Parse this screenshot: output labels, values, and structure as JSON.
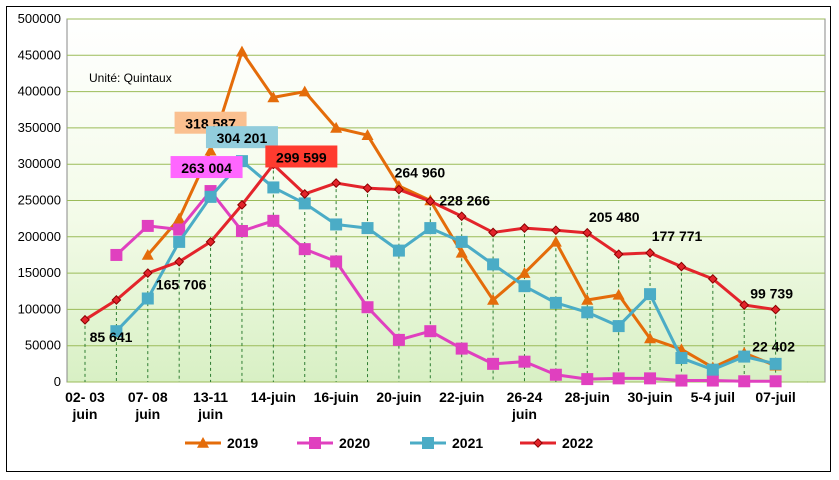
{
  "chart_data": {
    "type": "line",
    "unit_note": "Unité: Quintaux",
    "ylim": [
      0,
      500000
    ],
    "yticks": [
      "0",
      "50000",
      "100000",
      "150000",
      "200000",
      "250000",
      "300000",
      "350000",
      "400000",
      "450000",
      "500000"
    ],
    "xtick_labels": [
      [
        "02- 03",
        "juin"
      ],
      [
        "07- 08",
        "juin"
      ],
      [
        "13-11",
        "juin"
      ],
      [
        "14-juin"
      ],
      [
        "16-juin"
      ],
      [
        "20-juin"
      ],
      [
        "22-juin"
      ],
      [
        "26-24",
        "juin"
      ],
      [
        "28-juin"
      ],
      [
        "30-juin"
      ],
      [
        "5-4 juil"
      ],
      [
        "07-juil"
      ]
    ],
    "x_count": 24,
    "grid": true,
    "legend_position": "bottom",
    "series": [
      {
        "name": "2019",
        "color": "#E46C0A",
        "marker": "triangle",
        "start": 2,
        "values": [
          175000,
          225000,
          318587,
          455000,
          392000,
          400000,
          350000,
          340000,
          270000,
          250000,
          178000,
          113000,
          150000,
          193000,
          113000,
          120000,
          60000,
          45000,
          20000,
          40000,
          22402
        ]
      },
      {
        "name": "2020",
        "color": "#E040BF",
        "marker": "square",
        "start": 1,
        "values": [
          175000,
          215000,
          210000,
          263004,
          208000,
          222000,
          183000,
          166000,
          103000,
          58000,
          70000,
          46000,
          25000,
          28000,
          10000,
          4000,
          5000,
          5000,
          2000,
          2000,
          1000,
          1000
        ]
      },
      {
        "name": "2021",
        "color": "#4BACC6",
        "marker": "square",
        "start": 1,
        "values": [
          70000,
          115000,
          193000,
          255000,
          304201,
          268000,
          246000,
          217000,
          212000,
          181000,
          212000,
          193000,
          162000,
          132000,
          109000,
          96000,
          77000,
          121000,
          33000,
          17000,
          35000,
          25000
        ]
      },
      {
        "name": "2022",
        "color": "#E3242B",
        "marker": "diamond",
        "start": 0,
        "values": [
          85641,
          113000,
          150000,
          165706,
          193000,
          244000,
          299599,
          259000,
          274000,
          267000,
          264960,
          249000,
          228266,
          206000,
          212000,
          209000,
          205480,
          176000,
          177771,
          159000,
          142000,
          106000,
          99739
        ]
      }
    ],
    "data_labels": [
      {
        "text": "318 587",
        "series": 0,
        "index": 2,
        "box": "#FAC090"
      },
      {
        "text": "304 201",
        "series": 2,
        "index": 4,
        "box": "#92CDDC"
      },
      {
        "text": "263 004",
        "series": 1,
        "index": 3,
        "box": "#FF66FF"
      },
      {
        "text": "299 599",
        "series": 3,
        "index": 6,
        "box": "#FF3B2F"
      },
      {
        "text": "165 706",
        "series": 3,
        "index": 3
      },
      {
        "text": "85 641",
        "series": 3,
        "index": 0
      },
      {
        "text": "264 960",
        "series": 3,
        "index": 10
      },
      {
        "text": "228 266",
        "series": 3,
        "index": 12
      },
      {
        "text": "205 480",
        "series": 3,
        "index": 16
      },
      {
        "text": "177 771",
        "series": 3,
        "index": 18
      },
      {
        "text": "99 739",
        "series": 3,
        "index": 22
      },
      {
        "text": "22 402",
        "series": 0,
        "index": 20
      }
    ]
  }
}
